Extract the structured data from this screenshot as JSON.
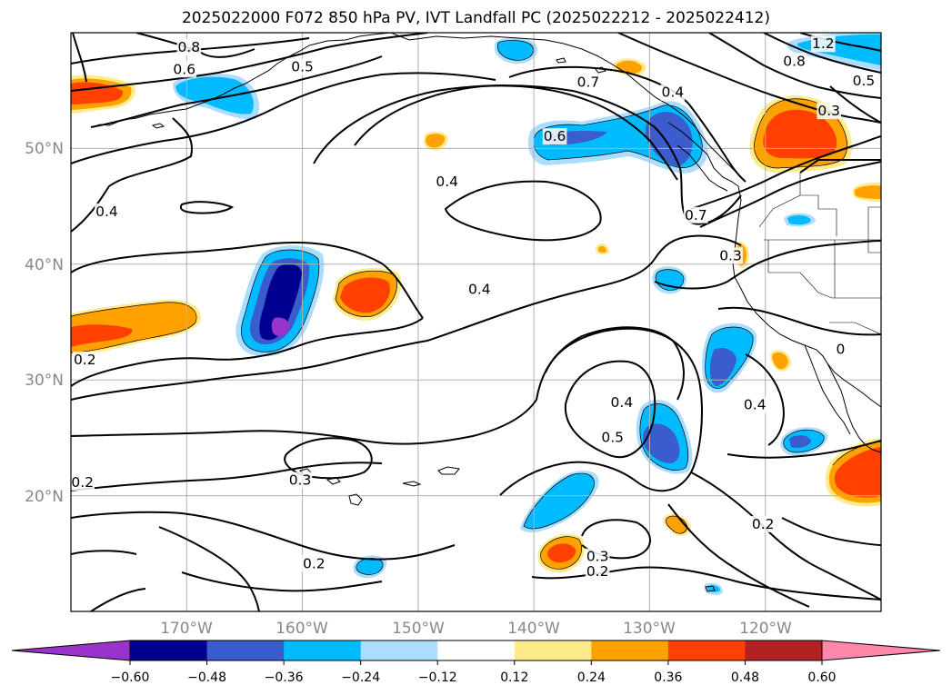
{
  "title": "2025022000 F072 850 hPa PV, IVT Landfall PC (2025022212 - 2025022412)",
  "lon_ticks": [
    "170°W",
    "160°W",
    "150°W",
    "140°W",
    "130°W",
    "120°W"
  ],
  "lat_ticks": [
    "50°N",
    "40°N",
    "30°N",
    "20°N"
  ],
  "extent": {
    "lon": [
      -180,
      -110
    ],
    "lat": [
      10,
      60
    ]
  },
  "colorbar": {
    "ticks": [
      "−0.60",
      "−0.48",
      "−0.36",
      "−0.24",
      "−0.12",
      "0.12",
      "0.24",
      "0.36",
      "0.48",
      "0.60"
    ],
    "under_color": "#9933cc",
    "over_color": "#ff88aa",
    "colors": [
      "#000090",
      "#3a5ccc",
      "#00bbff",
      "#aaddff",
      "#ffffff",
      "#ffeb8a",
      "#ffa200",
      "#ff4000",
      "#b22222"
    ]
  },
  "contour_labels": [
    {
      "text": "0.8",
      "lon": -169.8,
      "lat": 58.7
    },
    {
      "text": "0.6",
      "lon": -170.2,
      "lat": 56.8
    },
    {
      "text": "0.5",
      "lon": -160.0,
      "lat": 57.0
    },
    {
      "text": "0.7",
      "lon": -135.3,
      "lat": 55.7
    },
    {
      "text": "0.6",
      "lon": -138.2,
      "lat": 51.0
    },
    {
      "text": "0.4",
      "lon": -128.0,
      "lat": 54.8
    },
    {
      "text": "1.2",
      "lon": -115.0,
      "lat": 59.0
    },
    {
      "text": "0.8",
      "lon": -117.5,
      "lat": 57.5
    },
    {
      "text": "0.5",
      "lon": -111.5,
      "lat": 55.8
    },
    {
      "text": "0.3",
      "lon": -114.5,
      "lat": 53.2
    },
    {
      "text": "0.4",
      "lon": -147.5,
      "lat": 47.1
    },
    {
      "text": "0.7",
      "lon": -126.0,
      "lat": 44.2
    },
    {
      "text": "0.3",
      "lon": -123.0,
      "lat": 40.7
    },
    {
      "text": "0.4",
      "lon": -176.9,
      "lat": 44.5
    },
    {
      "text": "0.4",
      "lon": -144.7,
      "lat": 37.8
    },
    {
      "text": "0.2",
      "lon": -178.8,
      "lat": 31.7
    },
    {
      "text": "0.4",
      "lon": -132.4,
      "lat": 28.0
    },
    {
      "text": "0.5",
      "lon": -133.2,
      "lat": 25.0
    },
    {
      "text": "0.4",
      "lon": -120.9,
      "lat": 27.8
    },
    {
      "text": "0.2",
      "lon": -179.0,
      "lat": 21.1
    },
    {
      "text": "0.3",
      "lon": -160.2,
      "lat": 21.3
    },
    {
      "text": "0.2",
      "lon": -120.2,
      "lat": 17.5
    },
    {
      "text": "0.3",
      "lon": -134.5,
      "lat": 14.7
    },
    {
      "text": "0.2",
      "lon": -134.5,
      "lat": 13.4
    },
    {
      "text": "0.2",
      "lon": -159.0,
      "lat": 14.1
    },
    {
      "text": "0",
      "lon": -113.5,
      "lat": 32.6
    }
  ]
}
